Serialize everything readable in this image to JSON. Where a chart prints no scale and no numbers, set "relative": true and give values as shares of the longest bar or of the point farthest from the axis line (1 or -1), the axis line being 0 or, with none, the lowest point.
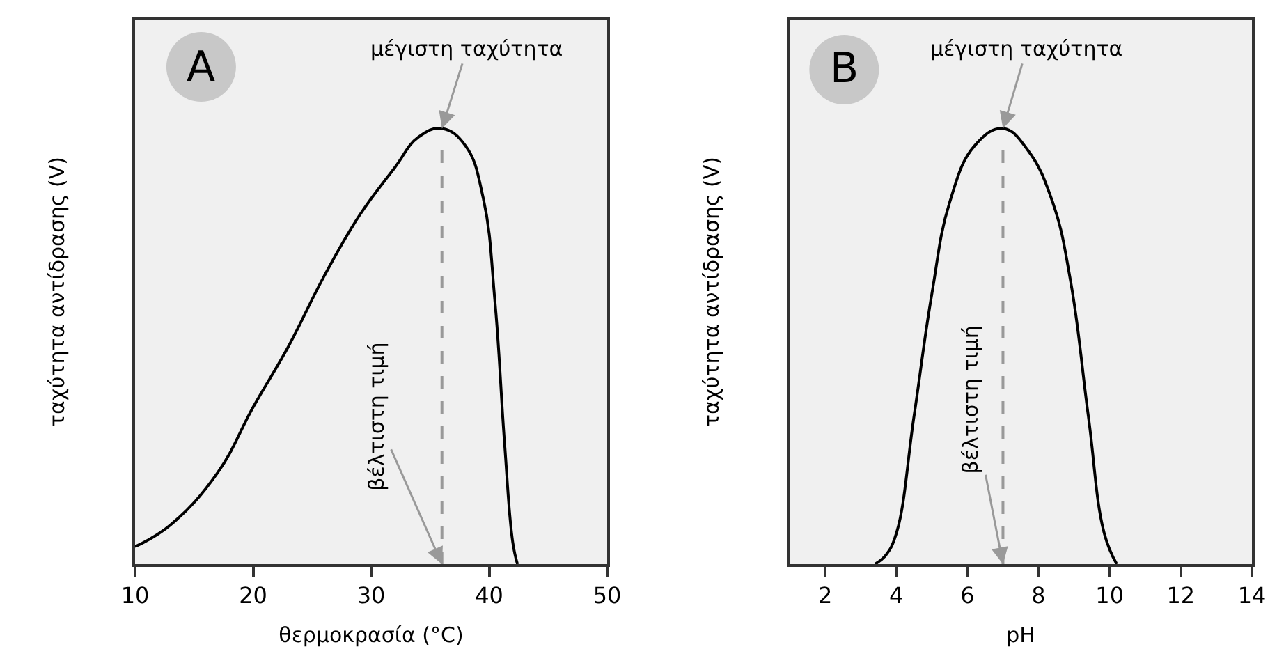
{
  "chart_data": [
    {
      "type": "line",
      "xlabel": "θερμοκρασία (°C)",
      "ylabel": "ταχύτητα αντίδρασης (V)",
      "relative": true,
      "color": "#000000",
      "marker": "none",
      "line_style": "solid",
      "grid": false,
      "tick_labels": "x",
      "xlim": [
        10,
        50
      ],
      "xticks": [
        10,
        20,
        30,
        40,
        50
      ],
      "x": [
        10,
        13,
        17,
        20,
        23,
        26,
        29,
        32,
        34,
        36,
        38,
        39.5,
        40.5,
        41.3,
        42,
        42.4
      ],
      "values": [
        0.04,
        0.09,
        0.21,
        0.36,
        0.5,
        0.66,
        0.8,
        0.91,
        0.98,
        1,
        0.96,
        0.84,
        0.6,
        0.28,
        0.05,
        0
      ],
      "ref_lines": [
        {
          "axis": "x",
          "value": 36,
          "color": "#999999",
          "line_style": "dashed"
        }
      ],
      "annotations": [
        "A",
        "μέγιστη ταχύτητα",
        "βέλτιστη τιμή"
      ]
    },
    {
      "type": "line",
      "xlabel": "pH",
      "ylabel": "ταχύτητα αντίδρασης (V)",
      "relative": true,
      "color": "#000000",
      "marker": "none",
      "line_style": "solid",
      "grid": false,
      "tick_labels": "x",
      "xlim": [
        1,
        14
      ],
      "xticks": [
        2,
        4,
        6,
        8,
        10,
        12,
        14
      ],
      "x": [
        3.4,
        3.7,
        4,
        4.5,
        5,
        5.5,
        6.2,
        7,
        7.7,
        8.4,
        8.9,
        9.4,
        9.85,
        10.2
      ],
      "values": [
        0,
        0.02,
        0.07,
        0.34,
        0.62,
        0.83,
        0.96,
        1,
        0.95,
        0.83,
        0.65,
        0.34,
        0.07,
        0
      ],
      "ref_lines": [
        {
          "axis": "x",
          "value": 7,
          "color": "#999999",
          "line_style": "dashed"
        }
      ],
      "annotations": [
        "B",
        "μέγιστη ταχύτητα",
        "βέλτιστη τιμή"
      ]
    }
  ]
}
